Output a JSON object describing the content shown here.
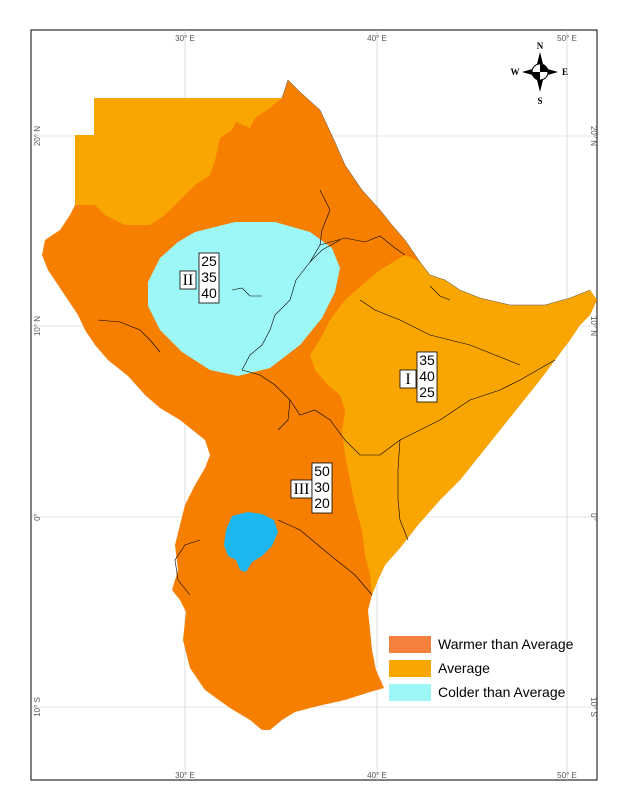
{
  "map": {
    "longitude_ticks": [
      "30° E",
      "40° E",
      "50° E"
    ],
    "latitude_ticks": [
      "20° N",
      "10° N",
      "0°",
      "10° S"
    ],
    "compass": {
      "n": "N",
      "s": "S",
      "e": "E",
      "w": "W"
    },
    "zones": [
      {
        "id": "I",
        "label": "I",
        "probabilities": [
          "35",
          "40",
          "25"
        ]
      },
      {
        "id": "II",
        "label": "II",
        "probabilities": [
          "25",
          "35",
          "40"
        ]
      },
      {
        "id": "III",
        "label": "III",
        "probabilities": [
          "50",
          "30",
          "20"
        ]
      }
    ],
    "legend": [
      {
        "label": "Warmer than Average",
        "color": "#f57f3c"
      },
      {
        "label": "Average",
        "color": "#f9a602"
      },
      {
        "label": "Colder than Average",
        "color": "#9df7f7"
      }
    ],
    "colors": {
      "warmer_fill": "#f77f00",
      "average_fill": "#f9a602",
      "colder_fill": "#9df7f7",
      "lake": "#1cb6f2",
      "border": "#000000"
    }
  }
}
